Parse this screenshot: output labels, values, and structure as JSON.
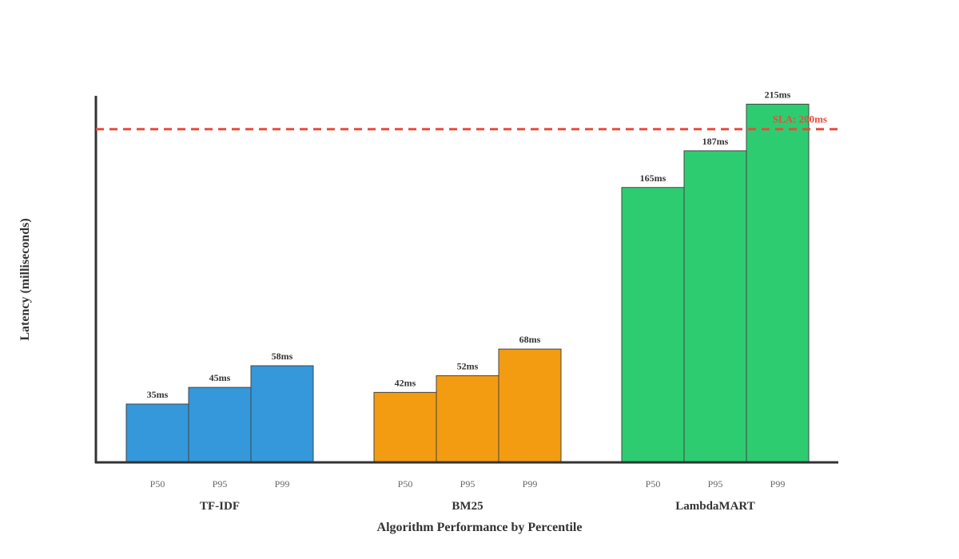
{
  "chart_data": {
    "type": "bar",
    "title": "",
    "xlabel": "Algorithm Performance by Percentile",
    "ylabel": "Latency (milliseconds)",
    "ylim": [
      0,
      220
    ],
    "grid": false,
    "value_suffix": "ms",
    "categories": [
      "P50",
      "P95",
      "P99"
    ],
    "groups": [
      {
        "name": "TF-IDF",
        "color": "#3498db",
        "values": [
          35,
          45,
          58
        ]
      },
      {
        "name": "BM25",
        "color": "#f39c12",
        "values": [
          42,
          52,
          68
        ]
      },
      {
        "name": "LambdaMART",
        "color": "#2ecc71",
        "values": [
          165,
          187,
          215
        ]
      }
    ],
    "reference_line": {
      "label": "SLA: 200ms",
      "value": 200,
      "color": "#e74c3c",
      "style": "dashed"
    }
  }
}
